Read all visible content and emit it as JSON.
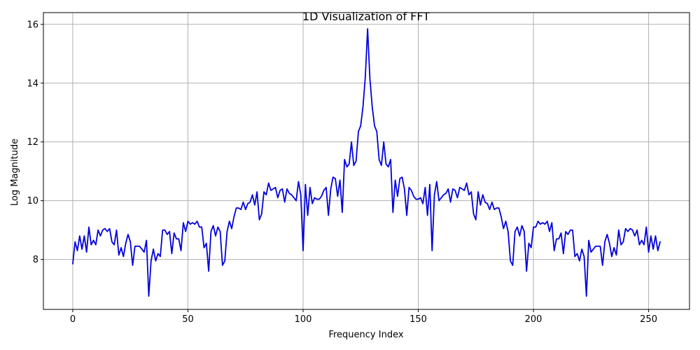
{
  "chart_data": {
    "type": "line",
    "title": "1D Visualization of FFT",
    "xlabel": "Frequency Index",
    "ylabel": "Log Magnitude",
    "xlim": [
      -12.75,
      267.75
    ],
    "ylim": [
      6.3,
      16.4
    ],
    "xticks": [
      0,
      50,
      100,
      150,
      200,
      250
    ],
    "yticks": [
      8,
      10,
      12,
      14,
      16
    ],
    "grid": true,
    "colors": {
      "line": "#0000dd",
      "grid": "#b0b0b0",
      "axes": "#000000"
    },
    "series": [
      {
        "x": [
          0,
          1,
          2,
          3,
          4,
          5,
          6,
          7,
          8,
          9,
          10,
          11,
          12,
          13,
          14,
          15,
          16,
          17,
          18,
          19,
          20,
          21,
          22,
          23,
          24,
          25,
          26,
          27,
          28,
          29,
          30,
          31,
          32,
          33,
          34,
          35,
          36,
          37,
          38,
          39,
          40,
          41,
          42,
          43,
          44,
          45,
          46,
          47,
          48,
          49,
          50,
          51,
          52,
          53,
          54,
          55,
          56,
          57,
          58,
          59,
          60,
          61,
          62,
          63,
          64,
          65,
          66,
          67,
          68,
          69,
          70,
          71,
          72,
          73,
          74,
          75,
          76,
          77,
          78,
          79,
          80,
          81,
          82,
          83,
          84,
          85,
          86,
          87,
          88,
          89,
          90,
          91,
          92,
          93,
          94,
          95,
          96,
          97,
          98,
          99,
          100,
          101,
          102,
          103,
          104,
          105,
          106,
          107,
          108,
          109,
          110,
          111,
          112,
          113,
          114,
          115,
          116,
          117,
          118,
          119,
          120,
          121,
          122,
          123,
          124,
          125,
          126,
          127,
          128,
          129,
          130,
          131,
          132,
          133,
          134,
          135,
          136,
          137,
          138,
          139,
          140,
          141,
          142,
          143,
          144,
          145,
          146,
          147,
          148,
          149,
          150,
          151,
          152,
          153,
          154,
          155,
          156,
          157,
          158,
          159,
          160,
          161,
          162,
          163,
          164,
          165,
          166,
          167,
          168,
          169,
          170,
          171,
          172,
          173,
          174,
          175,
          176,
          177,
          178,
          179,
          180,
          181,
          182,
          183,
          184,
          185,
          186,
          187,
          188,
          189,
          190,
          191,
          192,
          193,
          194,
          195,
          196,
          197,
          198,
          199,
          200,
          201,
          202,
          203,
          204,
          205,
          206,
          207,
          208,
          209,
          210,
          211,
          212,
          213,
          214,
          215,
          216,
          217,
          218,
          219,
          220,
          221,
          222,
          223,
          224,
          225,
          226,
          227,
          228,
          229,
          230,
          231,
          232,
          233,
          234,
          235,
          236,
          237,
          238,
          239,
          240,
          241,
          242,
          243,
          244,
          245,
          246,
          247,
          248,
          249,
          250,
          251,
          252,
          253,
          254,
          255
        ],
        "values": [
          7.85,
          8.6,
          8.3,
          8.8,
          8.35,
          8.8,
          8.25,
          9.1,
          8.5,
          8.65,
          8.5,
          9.0,
          8.8,
          9.0,
          9.05,
          8.95,
          9.05,
          8.6,
          8.5,
          9.0,
          8.15,
          8.4,
          8.1,
          8.55,
          8.85,
          8.6,
          7.8,
          8.45,
          8.45,
          8.45,
          8.35,
          8.25,
          8.65,
          6.75,
          7.95,
          8.35,
          7.95,
          8.2,
          8.1,
          9.0,
          9.0,
          8.85,
          8.95,
          8.2,
          8.9,
          8.7,
          8.7,
          8.3,
          9.25,
          8.95,
          9.3,
          9.2,
          9.25,
          9.2,
          9.3,
          9.1,
          9.1,
          8.4,
          8.55,
          7.6,
          8.95,
          9.15,
          8.8,
          9.1,
          8.95,
          7.8,
          7.95,
          8.95,
          9.3,
          9.05,
          9.45,
          9.75,
          9.75,
          9.7,
          9.95,
          9.7,
          9.9,
          9.95,
          10.2,
          9.85,
          10.3,
          9.35,
          9.55,
          10.3,
          10.2,
          10.6,
          10.35,
          10.4,
          10.45,
          10.1,
          10.35,
          10.4,
          9.95,
          10.4,
          10.25,
          10.2,
          10.1,
          10.0,
          10.65,
          10.2,
          8.3,
          10.55,
          9.5,
          10.45,
          9.9,
          10.1,
          10.05,
          10.05,
          10.15,
          10.35,
          10.45,
          9.5,
          10.4,
          10.8,
          10.75,
          10.15,
          10.7,
          9.6,
          11.4,
          11.15,
          11.25,
          12.0,
          11.2,
          11.35,
          12.35,
          12.55,
          13.2,
          14.2,
          15.85,
          14.15,
          13.2,
          12.55,
          12.35,
          11.4,
          11.2,
          12.0,
          11.25,
          11.15,
          11.4,
          9.6,
          10.7,
          10.15,
          10.75,
          10.8,
          10.4,
          9.5,
          10.45,
          10.35,
          10.15,
          10.05,
          10.05,
          10.1,
          9.9,
          10.45,
          9.5,
          10.55,
          8.3,
          10.2,
          10.65,
          10.0,
          10.1,
          10.2,
          10.25,
          10.4,
          9.95,
          10.4,
          10.35,
          10.1,
          10.45,
          10.4,
          10.35,
          10.6,
          10.2,
          10.3,
          9.55,
          9.35,
          10.3,
          9.85,
          10.2,
          9.95,
          9.9,
          9.7,
          9.95,
          9.7,
          9.75,
          9.75,
          9.45,
          9.05,
          9.3,
          8.95,
          7.95,
          7.8,
          8.95,
          9.1,
          8.8,
          9.15,
          8.95,
          7.6,
          8.55,
          8.4,
          9.1,
          9.1,
          9.3,
          9.2,
          9.25,
          9.2,
          9.3,
          8.95,
          9.25,
          8.3,
          8.7,
          8.7,
          8.9,
          8.2,
          8.95,
          8.85,
          9.0,
          9.0,
          8.1,
          8.2,
          7.95,
          8.35,
          8.1,
          6.75,
          8.65,
          8.25,
          8.35,
          8.45,
          8.45,
          8.45,
          7.8,
          8.6,
          8.85,
          8.55,
          8.1,
          8.4,
          8.15,
          9.0,
          8.5,
          8.6,
          9.05,
          8.95,
          9.05,
          9.0,
          8.8,
          9.0,
          8.5,
          8.65,
          8.5,
          9.1,
          8.25,
          8.8,
          8.35,
          8.8,
          8.3,
          8.6
        ]
      }
    ]
  }
}
